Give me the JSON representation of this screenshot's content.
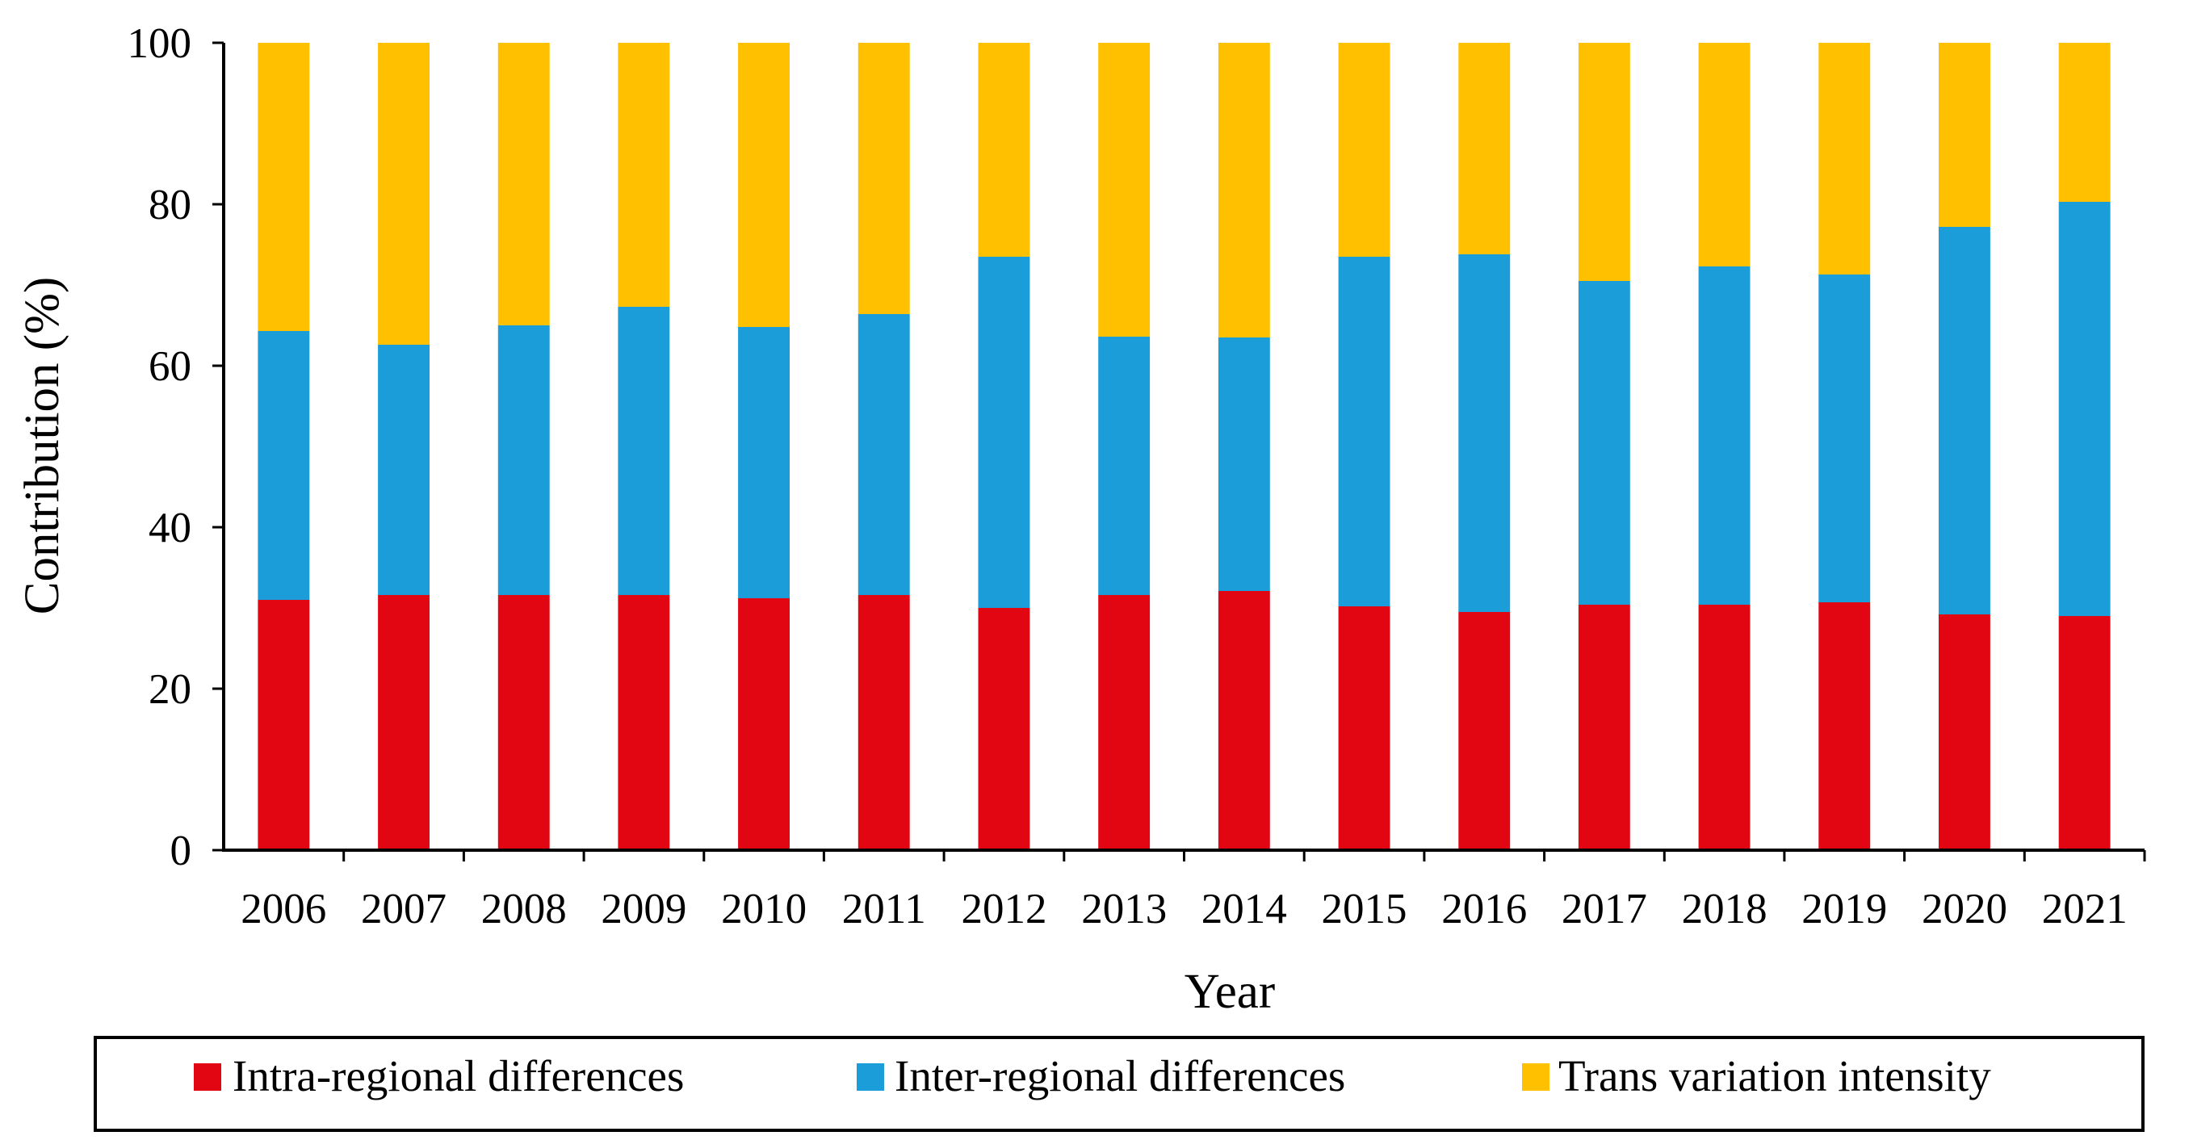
{
  "chart_data": {
    "type": "bar",
    "stacked": true,
    "title": "",
    "xlabel": "Year",
    "ylabel": "Contribution (%)",
    "ylim": [
      0,
      100
    ],
    "yticks": [
      "0",
      "20",
      "40",
      "60",
      "80",
      "100"
    ],
    "grid": false,
    "legend_position": "bottom",
    "categories": [
      "2006",
      "2007",
      "2008",
      "2009",
      "2010",
      "2011",
      "2012",
      "2013",
      "2014",
      "2015",
      "2016",
      "2017",
      "2018",
      "2019",
      "2020",
      "2021"
    ],
    "series": [
      {
        "name": "Intra-regional differences",
        "color": "#e20613",
        "values": [
          31.0,
          31.6,
          31.6,
          31.6,
          31.2,
          31.6,
          30.0,
          31.6,
          32.1,
          30.2,
          29.5,
          30.4,
          30.4,
          30.7,
          29.2,
          29.0
        ]
      },
      {
        "name": "Inter-regional differences",
        "color": "#1a9dd8",
        "values": [
          33.3,
          31.0,
          33.4,
          35.7,
          33.6,
          34.8,
          43.5,
          32.0,
          31.4,
          43.3,
          44.3,
          40.1,
          41.9,
          40.6,
          48.0,
          51.3
        ]
      },
      {
        "name": "Trans variation intensity",
        "color": "#ffc000",
        "values": [
          35.7,
          37.4,
          35.0,
          32.7,
          35.2,
          33.6,
          26.5,
          36.4,
          36.5,
          26.5,
          26.2,
          29.5,
          27.7,
          28.7,
          22.8,
          19.7
        ]
      }
    ]
  }
}
